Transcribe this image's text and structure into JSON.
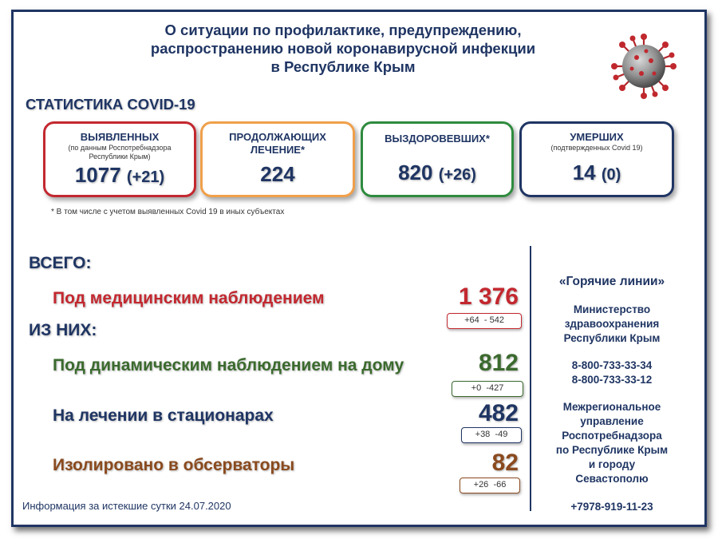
{
  "title": {
    "line1": "О ситуации по профилактике, предупреждению,",
    "line2": "распространению новой коронавирусной инфекции",
    "line3": "в Республике Крым"
  },
  "stats_heading": "СТАТИСТИКА COVID-19",
  "cards": {
    "detected": {
      "title": "ВЫЯВЛЕННЫХ",
      "sub1": "(по данным Роспотребнадзора",
      "sub2": "Республики Крым)",
      "value": "1077",
      "delta": "(+21)",
      "color": "#c3282f"
    },
    "treatment": {
      "title1": "ПРОДОЛЖАЮЩИХ",
      "title2": "ЛЕЧЕНИЕ*",
      "value": "224",
      "color": "#f0a04b"
    },
    "recovered": {
      "title": "ВЫЗДОРОВЕВШИХ*",
      "value": "820",
      "delta": "(+26)",
      "color": "#2e8b3e"
    },
    "deaths": {
      "title": "УМЕРШИХ",
      "sub": "(подтвержденных Covid 19)",
      "value": "14",
      "delta": "(0)",
      "color": "#1f3563"
    }
  },
  "footnote": "* В том числе с учетом выявленных Covid 19  в иных субъектах",
  "total_label": "ВСЕГО:",
  "of_them_label": "ИЗ НИХ:",
  "rows": {
    "medical": {
      "label": "Под медицинским наблюдением",
      "value": "1 376",
      "plus": "+64",
      "minus": "- 542",
      "color": "#c3282f"
    },
    "home": {
      "label": "Под динамическим наблюдением на дому",
      "value": "812",
      "plus": "+0",
      "minus": "-427",
      "color": "#3b6a2e"
    },
    "hospital": {
      "label": "На лечении в стационарах",
      "value": "482",
      "plus": "+38",
      "minus": "-49",
      "color": "#1f3563"
    },
    "observatory": {
      "label": "Изолировано в обсерваторы",
      "value": "82",
      "plus": "+26",
      "minus": "-66",
      "color": "#8a4a1e"
    }
  },
  "hotlines": {
    "title": "«Горячие линии»",
    "ministry1": "Министерство",
    "ministry2": "здравоохранения",
    "ministry3": "Республики Крым",
    "phone1": "8-800-733-33-34",
    "phone2": "8-800-733-33-12",
    "rpn1": "Межрегиональное",
    "rpn2": "управление",
    "rpn3": "Роспотребнадзора",
    "rpn4": "по Республике Крым",
    "rpn5": "и городу",
    "rpn6": "Севастополю",
    "phone3": "+7978-919-11-23"
  },
  "info": "Информация за истекшие сутки 24.07.2020"
}
